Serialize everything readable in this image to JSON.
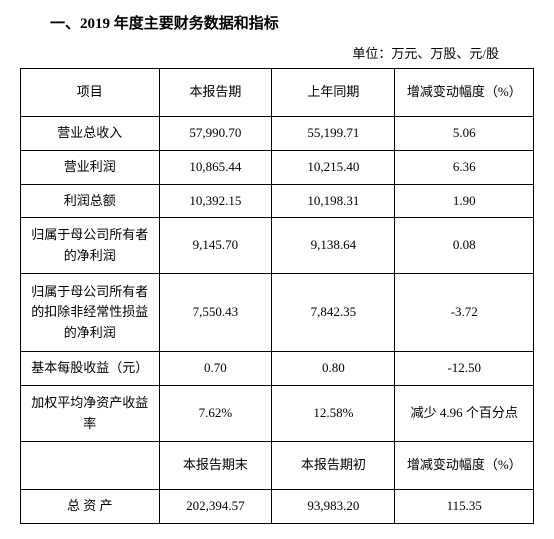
{
  "title": "一、2019 年度主要财务数据和指标",
  "unit_label": "单位：万元、万股、元/股",
  "header1": {
    "c1": "项目",
    "c2": "本报告期",
    "c3": "上年同期",
    "c4": "增减变动幅度（%）"
  },
  "rows": [
    {
      "c1": "营业总收入",
      "c2": "57,990.70",
      "c3": "55,199.71",
      "c4": "5.06"
    },
    {
      "c1": "营业利润",
      "c2": "10,865.44",
      "c3": "10,215.40",
      "c4": "6.36"
    },
    {
      "c1": "利润总额",
      "c2": "10,392.15",
      "c3": "10,198.31",
      "c4": "1.90"
    },
    {
      "c1": "归属于母公司所有者的净利润",
      "c2": "9,145.70",
      "c3": "9,138.64",
      "c4": "0.08"
    },
    {
      "c1": "归属于母公司所有者的扣除非经常性损益的净利润",
      "c2": "7,550.43",
      "c3": "7,842.35",
      "c4": "-3.72"
    },
    {
      "c1": "基本每股收益（元）",
      "c2": "0.70",
      "c3": "0.80",
      "c4": "-12.50"
    },
    {
      "c1": "加权平均净资产收益率",
      "c2": "7.62%",
      "c3": "12.58%",
      "c4": "减少 4.96 个百分点"
    }
  ],
  "header2": {
    "c1": "",
    "c2": "本报告期末",
    "c3": "本报告期初",
    "c4": "增减变动幅度（%）"
  },
  "rows2": [
    {
      "c1": "总 资 产",
      "c2": "202,394.57",
      "c3": "93,983.20",
      "c4": "115.35"
    }
  ],
  "colors": {
    "border": "#000000",
    "text": "#000000",
    "background": "#ffffff"
  },
  "fontsize": {
    "title": 15,
    "unit": 13,
    "cell": 13
  }
}
